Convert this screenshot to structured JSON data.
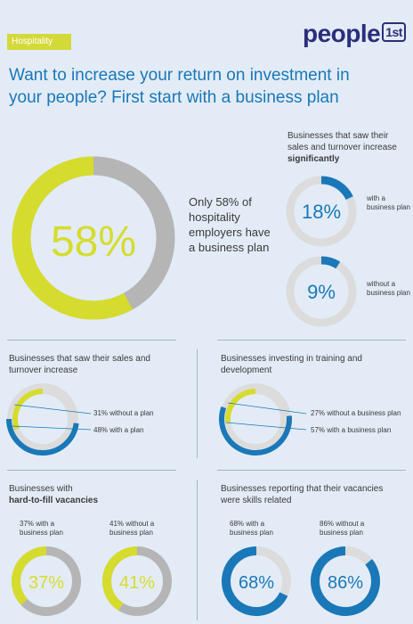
{
  "tag": "Hospitality",
  "logo": {
    "text": "people",
    "box": "1st"
  },
  "headline": "Want to increase your return on investment in your people? First start with a business plan",
  "colors": {
    "lime": "#d6dc2d",
    "blue": "#1a78b8",
    "grey": "#b5b5b5",
    "lightgrey": "#dcdcdc"
  },
  "big_stat": {
    "value_label": "58%",
    "caption": "Only 58% of hospitality employers have a business plan"
  },
  "significant": {
    "title_plain": "Businesses that saw their sales and turnover increase",
    "title_bold": "significantly",
    "items": [
      {
        "value_label": "18%",
        "note": "with a business plan"
      },
      {
        "value_label": "9%",
        "note": "without a business plan"
      }
    ]
  },
  "increase": {
    "title": "Businesses that saw their sales and turnover increase",
    "legend": [
      "31% without a plan",
      "48% with a plan"
    ]
  },
  "training": {
    "title": "Businesses investing in training and development",
    "legend": [
      "27% without a business plan",
      "57% with a business plan"
    ]
  },
  "vacancies": {
    "title_plain": "Businesses with",
    "title_bold": "hard-to-fill vacancies",
    "items": [
      {
        "value_label": "37%",
        "note": "37% with a business plan"
      },
      {
        "value_label": "41%",
        "note": "41% without a business plan"
      }
    ]
  },
  "skills": {
    "title": "Businesses reporting that their vacancies were skills related",
    "items": [
      {
        "value_label": "68%",
        "note": "68% with a business plan"
      },
      {
        "value_label": "86%",
        "note": "86% without a business plan"
      }
    ]
  },
  "chart_data": [
    {
      "type": "pie",
      "title": "",
      "categories": [
        "have a business plan",
        "no business plan"
      ],
      "values": [
        58,
        42
      ]
    },
    {
      "type": "pie",
      "title": "",
      "categories": [
        "with a business plan"
      ],
      "values": [
        18
      ]
    },
    {
      "type": "pie",
      "title": "",
      "categories": [
        "without a business plan"
      ],
      "values": [
        9
      ]
    },
    {
      "type": "pie",
      "title": "",
      "categories": [
        "without a plan",
        "with a plan"
      ],
      "values": [
        31,
        48
      ]
    },
    {
      "type": "pie",
      "title": "",
      "categories": [
        "without a business plan",
        "with a business plan"
      ],
      "values": [
        27,
        57
      ]
    },
    {
      "type": "pie",
      "title": "",
      "categories": [
        "with a business plan"
      ],
      "values": [
        37
      ]
    },
    {
      "type": "pie",
      "title": "",
      "categories": [
        "without a business plan"
      ],
      "values": [
        41
      ]
    },
    {
      "type": "pie",
      "title": "",
      "categories": [
        "with a business plan"
      ],
      "values": [
        68
      ]
    },
    {
      "type": "pie",
      "title": "",
      "categories": [
        "without a business plan"
      ],
      "values": [
        86
      ]
    }
  ]
}
